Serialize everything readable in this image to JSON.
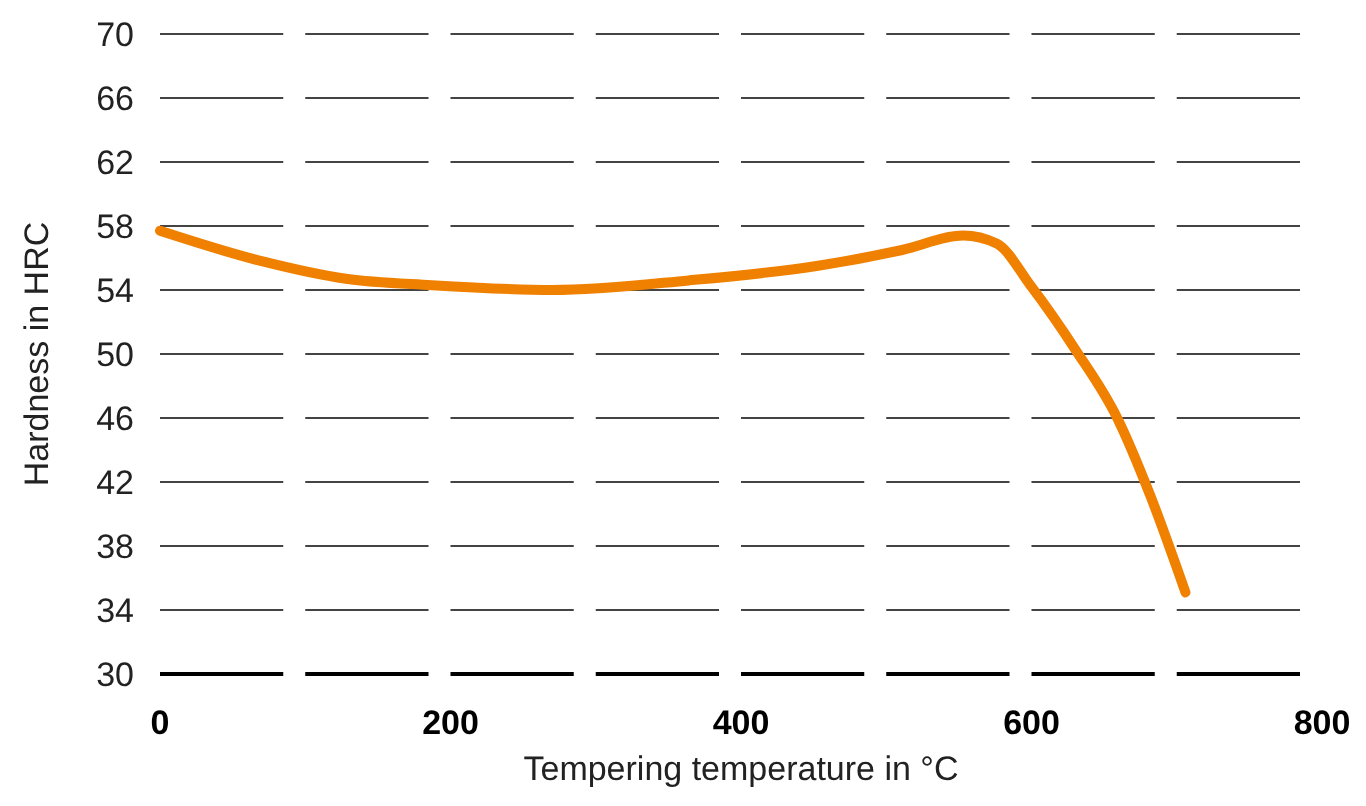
{
  "chart_data": {
    "type": "line",
    "xlabel": "Tempering temperature in °C",
    "ylabel": "Hardness in HRC",
    "xlim": [
      0,
      800
    ],
    "xticks": [
      0,
      200,
      400,
      600,
      800
    ],
    "ylim": [
      30,
      70
    ],
    "yticks": [
      30,
      34,
      38,
      42,
      46,
      50,
      54,
      58,
      62,
      66,
      70
    ],
    "grid": "y",
    "series": [
      {
        "color": "#f08000",
        "x": [
          0,
          70,
          128,
          187,
          270,
          364,
          452,
          511,
          553,
          576,
          600,
          630,
          659,
          682,
          706
        ],
        "values": [
          57.7,
          55.8,
          54.7,
          54.3,
          54.0,
          54.6,
          55.5,
          56.5,
          57.4,
          56.9,
          54.2,
          50.3,
          46.0,
          41.1,
          35.1
        ]
      }
    ]
  }
}
